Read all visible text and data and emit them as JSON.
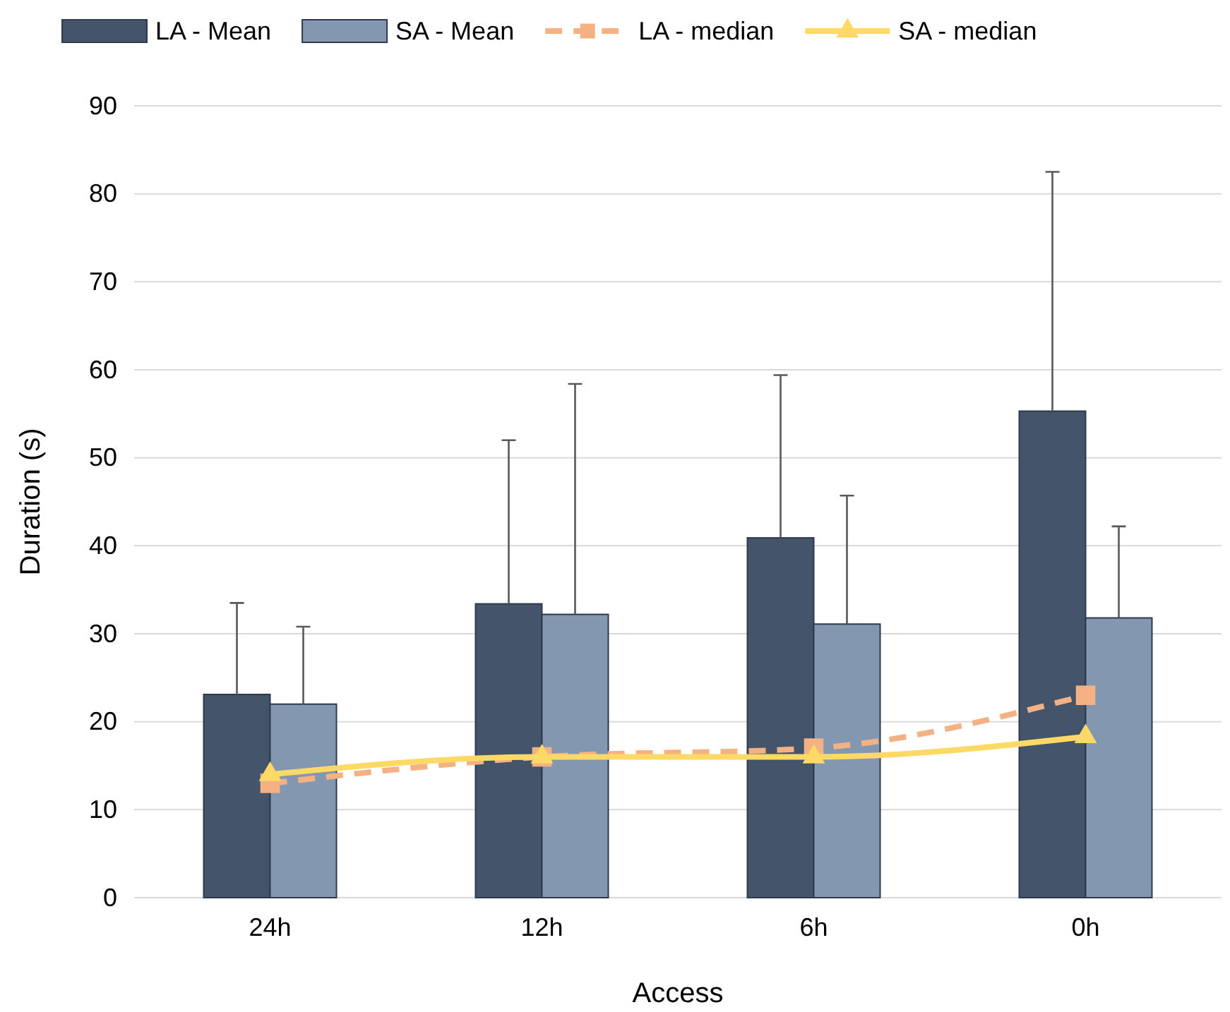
{
  "chart_data": {
    "type": "bar",
    "xlabel": "Access",
    "ylabel": "Duration (s)",
    "categories": [
      "24h",
      "12h",
      "6h",
      "0h"
    ],
    "ylim": [
      0,
      90
    ],
    "yticks": [
      0,
      10,
      20,
      30,
      40,
      50,
      60,
      70,
      80,
      90
    ],
    "grid": "y",
    "legend": "top",
    "series": [
      {
        "name": "LA - Mean",
        "color": "#44546a",
        "values": [
          23.1,
          33.4,
          40.9,
          55.3
        ],
        "errors": [
          [
            23.1,
            33.5
          ],
          [
            33.4,
            52.0
          ],
          [
            40.9,
            59.4
          ],
          [
            55.3,
            82.5
          ]
        ]
      },
      {
        "name": "SA - Mean",
        "color": "#8497b0",
        "values": [
          22.0,
          32.2,
          31.1,
          31.8
        ],
        "errors": [
          [
            22.0,
            30.8
          ],
          [
            32.2,
            58.4
          ],
          [
            31.1,
            45.7
          ],
          [
            31.8,
            42.2
          ]
        ]
      },
      {
        "name": "LA - median",
        "type": "line",
        "color": "#f4b183",
        "line_style": "dashed",
        "marker": "square",
        "values": [
          13,
          16,
          17,
          23
        ]
      },
      {
        "name": "SA - median",
        "type": "line",
        "color": "#ffd966",
        "line_style": "solid",
        "marker": "triangle",
        "values": [
          14,
          16,
          16,
          18.3
        ]
      }
    ]
  }
}
